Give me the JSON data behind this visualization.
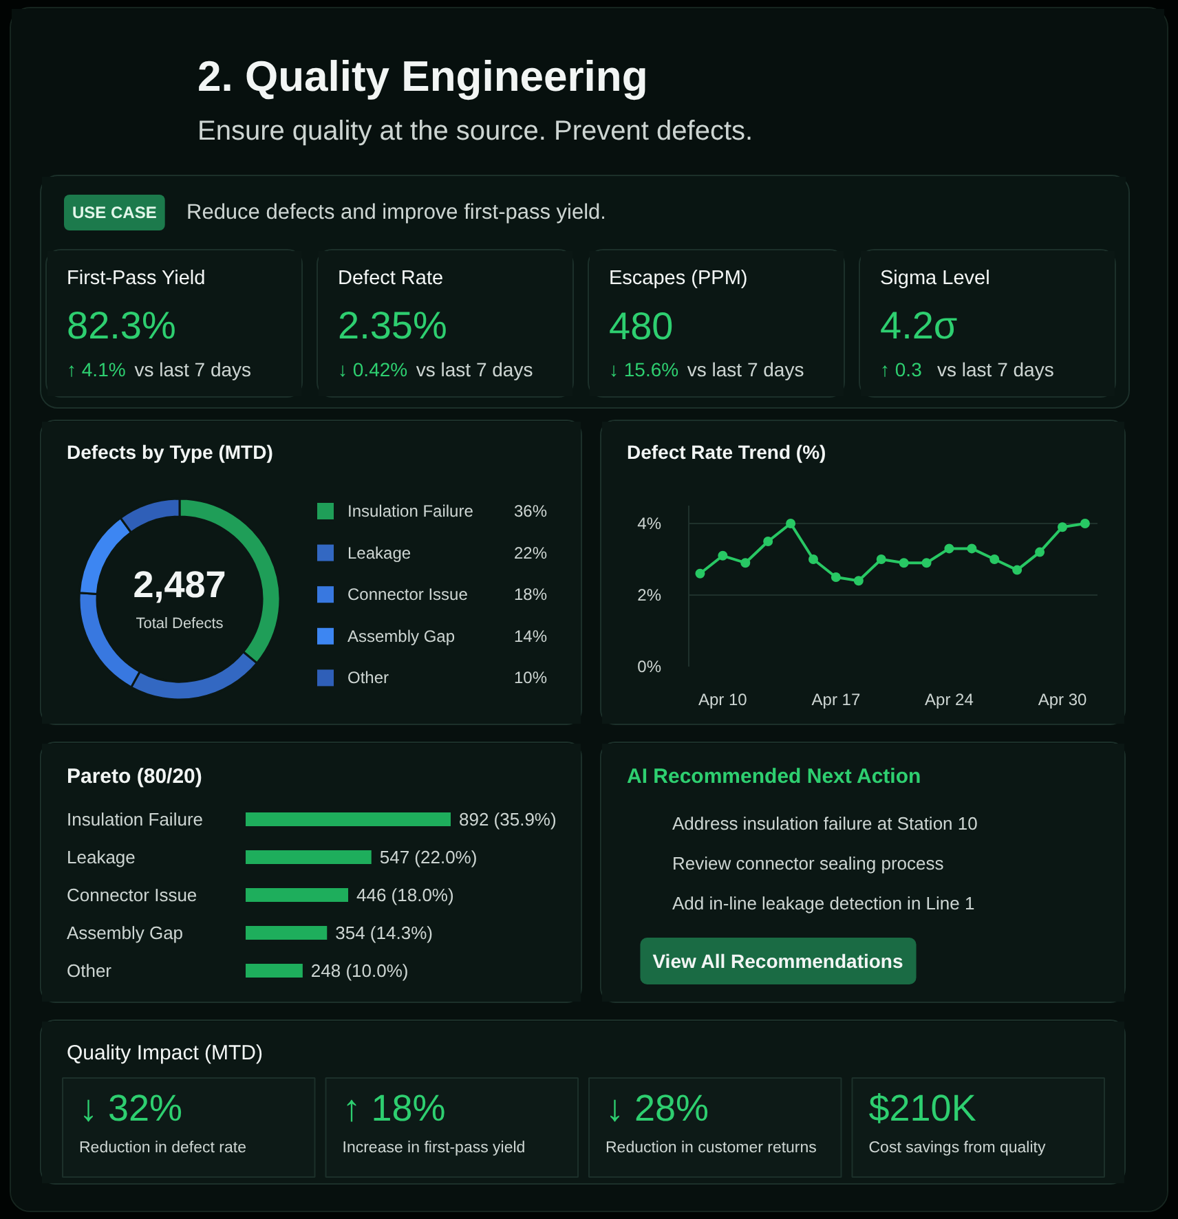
{
  "chart_data": [
    {
      "type": "other",
      "title": "2. Quality Engineering",
      "subtitle": "Ensure quality at the source. Prevent defects."
    },
    {
      "type": "other",
      "annotations": [
        "USE CASE",
        "Reduce defects and improve first-pass yield."
      ]
    },
    {
      "type": "other",
      "title": "First-Pass Yield",
      "annotations": [
        "82.3%",
        "↑ 4.1%",
        "vs last 7 days"
      ]
    },
    {
      "type": "other",
      "title": "Defect Rate",
      "annotations": [
        "2.35%",
        "↓ 0.42%",
        "vs last 7 days"
      ]
    },
    {
      "type": "other",
      "title": "Escapes (PPM)",
      "annotations": [
        "480",
        "↓ 15.6%",
        "vs last 7 days"
      ]
    },
    {
      "type": "other",
      "title": "Sigma Level",
      "annotations": [
        "4.2σ",
        "↑ 0.3",
        "vs last 7 days"
      ]
    },
    {
      "type": "donut",
      "title": "Defects by Type (MTD)",
      "categories": [
        "Insulation Failure",
        "Leakage",
        "Connector Issue",
        "Assembly Gap",
        "Other"
      ],
      "values": [
        36,
        22,
        18,
        14,
        10
      ],
      "colors": [
        "#1f9e58",
        "#3368c2",
        "#3878e0",
        "#3d86f2",
        "#2f5fb8"
      ],
      "value_labels": [
        "36%",
        "22%",
        "18%",
        "14%",
        "10%"
      ],
      "legend": "right",
      "annotations": [
        "2,487",
        "Total Defects"
      ]
    },
    {
      "type": "line",
      "title": "Defect Rate Trend (%)",
      "categories": [
        null,
        "Apr 10",
        null,
        null,
        null,
        null,
        "Apr 17",
        null,
        null,
        null,
        null,
        "Apr 24",
        null,
        null,
        null,
        null,
        "Apr 30",
        null
      ],
      "values": [
        2.6,
        3.1,
        2.9,
        3.5,
        4.0,
        3.0,
        2.5,
        2.4,
        3.0,
        2.9,
        2.9,
        3.3,
        3.3,
        3.0,
        2.7,
        3.2,
        3.9,
        4.0
      ],
      "color": "#28c864",
      "ylim": [
        0,
        4.5
      ],
      "yticks": [
        {
          "value": 0,
          "label": "0%"
        },
        {
          "value": 2,
          "label": "2%"
        },
        {
          "value": 4,
          "label": "4%"
        }
      ],
      "grid": "y",
      "marker": "circle"
    },
    {
      "type": "bar",
      "orientation": "horizontal",
      "title": "Pareto (80/20)",
      "categories": [
        "Insulation Failure",
        "Leakage",
        "Connector Issue",
        "Assembly Gap",
        "Other"
      ],
      "values": [
        892,
        547,
        446,
        354,
        248
      ],
      "color": "#1eae5c",
      "value_labels": [
        "892 (35.9%)",
        "547 (22.0%)",
        "446 (18.0%)",
        "354 (14.3%)",
        "248 (10.0%)"
      ],
      "tick_labels": "y"
    },
    {
      "type": "other",
      "title": "AI Recommended Next Action",
      "annotations": [
        "Address insulation failure at Station 10",
        "Review connector sealing process",
        "Add in-line leakage detection in Line 1",
        "View All Recommendations"
      ]
    },
    {
      "type": "other",
      "title": "Quality Impact (MTD)",
      "annotations": [
        "↓ 32%",
        "Reduction in defect rate",
        "↑ 18%",
        "Increase in first-pass yield",
        "↓ 28%",
        "Reduction in customer returns",
        "$210K",
        "Cost savings from quality"
      ]
    }
  ]
}
